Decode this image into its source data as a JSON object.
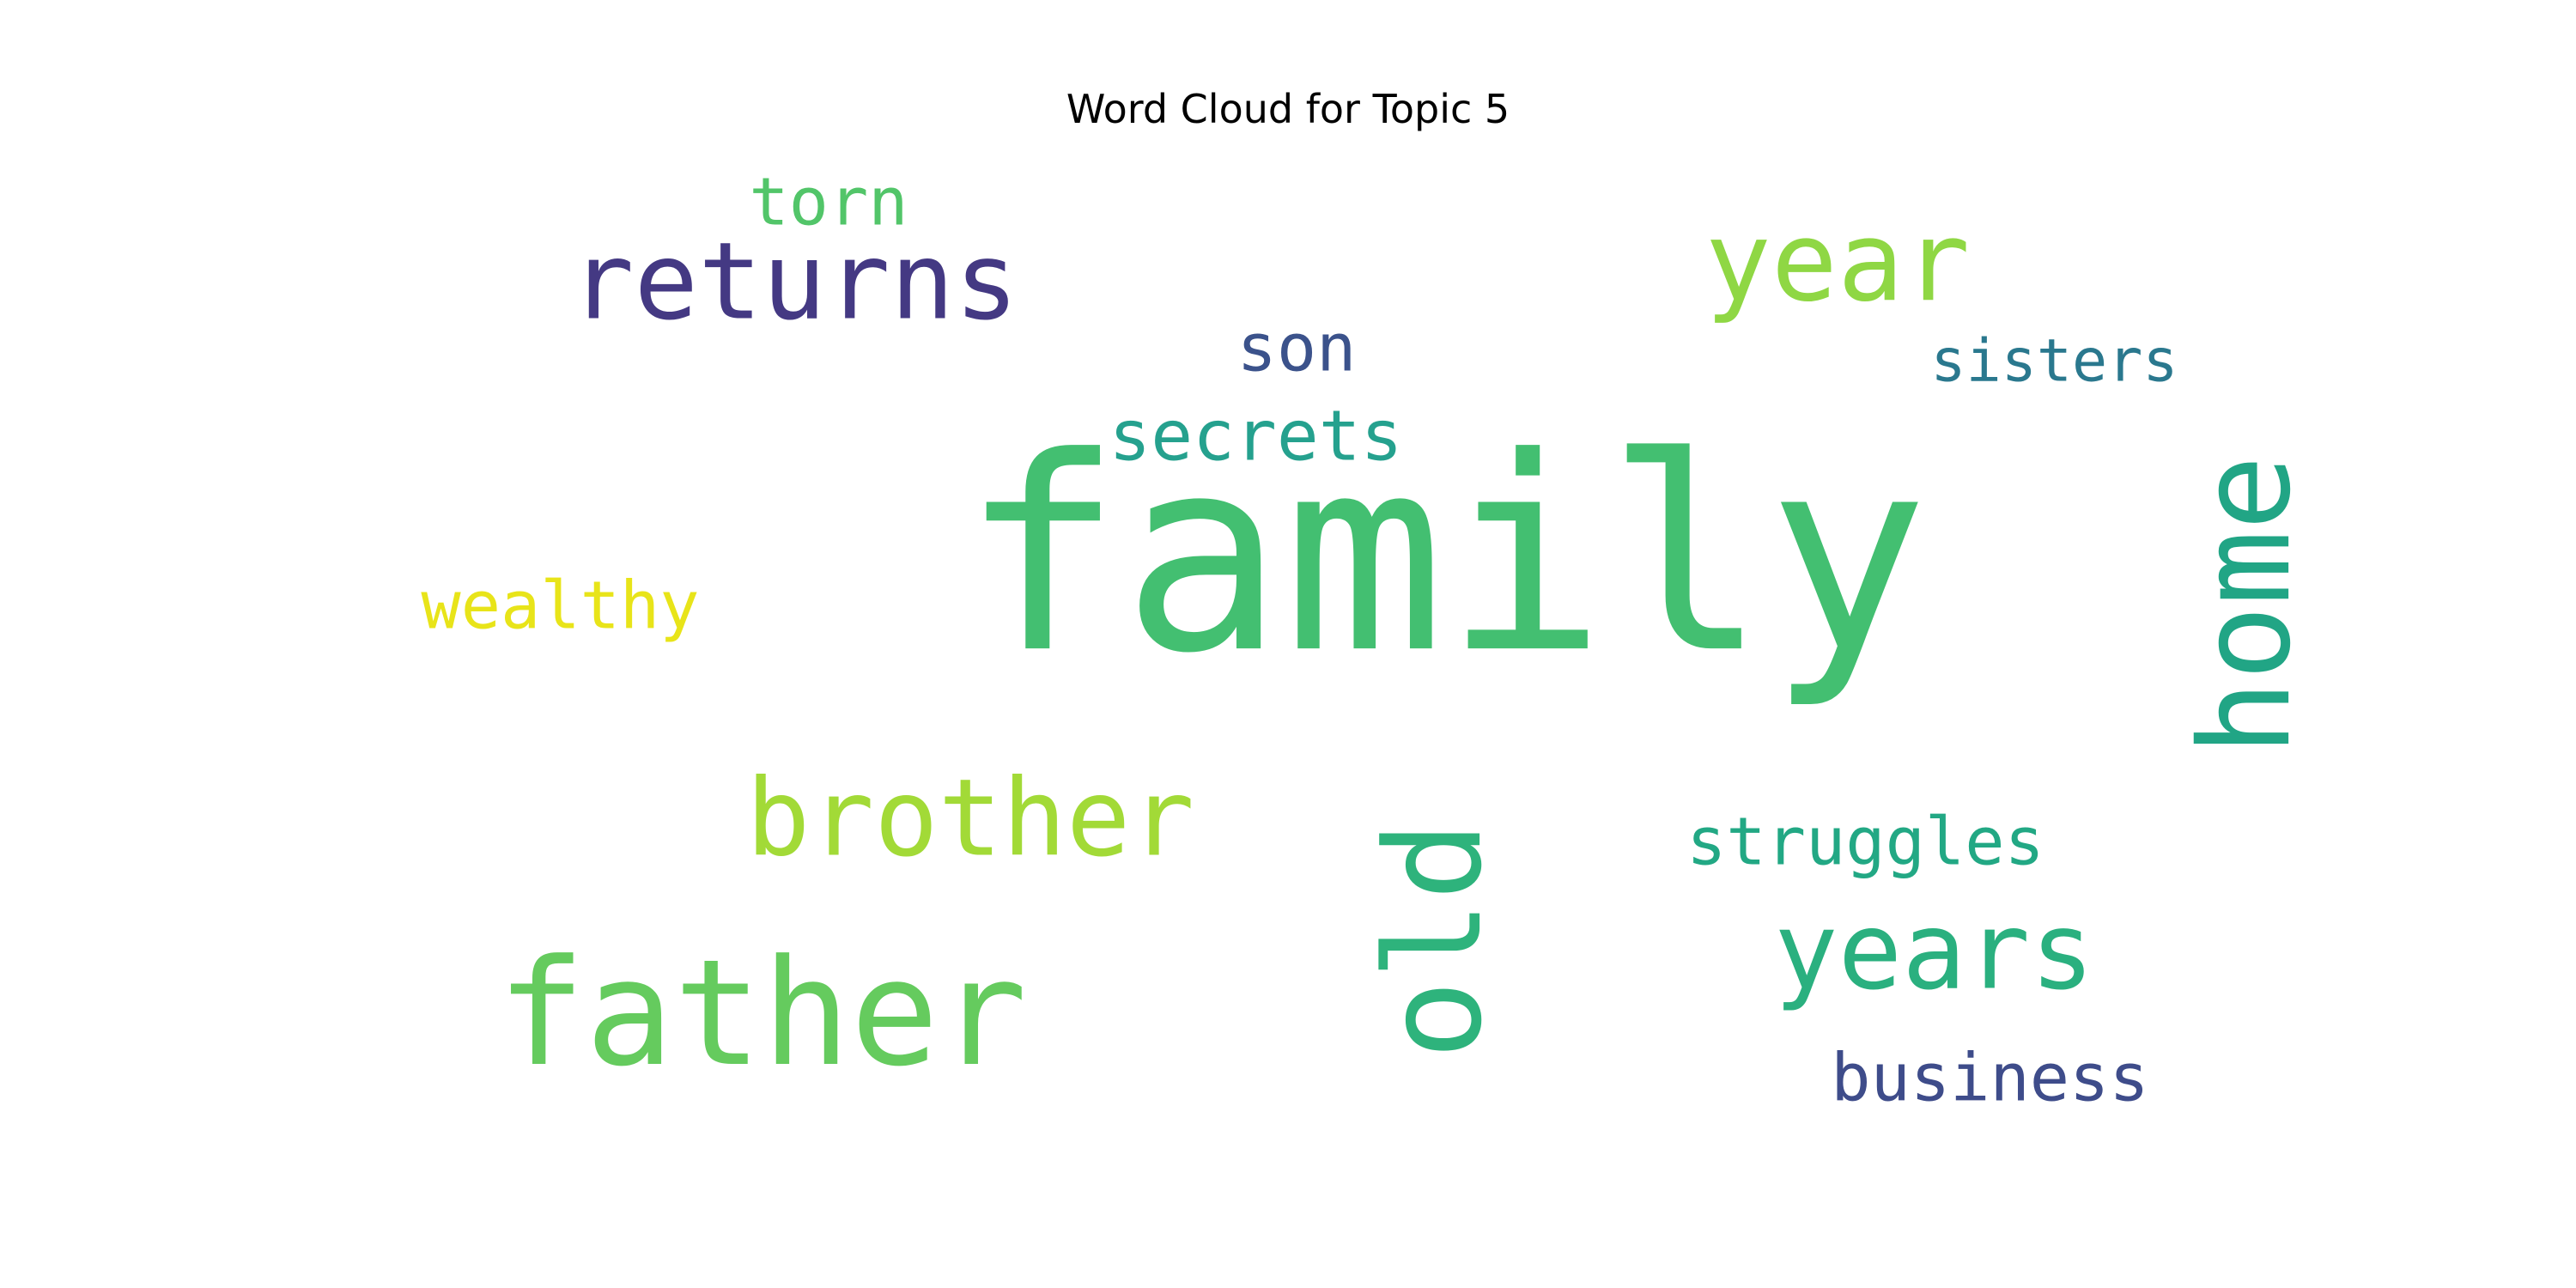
{
  "chart_data": {
    "type": "wordcloud",
    "title": "Word Cloud for Topic 5",
    "background": "#ffffff",
    "words": [
      {
        "text": "family",
        "color": "#43bf71",
        "orientation": "horizontal"
      },
      {
        "text": "returns",
        "color": "#443983",
        "orientation": "horizontal"
      },
      {
        "text": "year",
        "color": "#8fd744",
        "orientation": "horizontal"
      },
      {
        "text": "father",
        "color": "#65cb5e",
        "orientation": "horizontal"
      },
      {
        "text": "brother",
        "color": "#a2da37",
        "orientation": "horizontal"
      },
      {
        "text": "home",
        "color": "#21a585",
        "orientation": "vertical"
      },
      {
        "text": "old",
        "color": "#2eb37c",
        "orientation": "vertical"
      },
      {
        "text": "years",
        "color": "#2ab07f",
        "orientation": "horizontal"
      },
      {
        "text": "secrets",
        "color": "#25a18e",
        "orientation": "horizontal"
      },
      {
        "text": "wealthy",
        "color": "#e8e419",
        "orientation": "horizontal"
      },
      {
        "text": "son",
        "color": "#3b528b",
        "orientation": "horizontal"
      },
      {
        "text": "sisters",
        "color": "#2a788e",
        "orientation": "horizontal"
      },
      {
        "text": "struggles",
        "color": "#22a884",
        "orientation": "horizontal"
      },
      {
        "text": "business",
        "color": "#3e4c8a",
        "orientation": "horizontal"
      },
      {
        "text": "torn",
        "color": "#52c569",
        "orientation": "horizontal"
      }
    ]
  }
}
